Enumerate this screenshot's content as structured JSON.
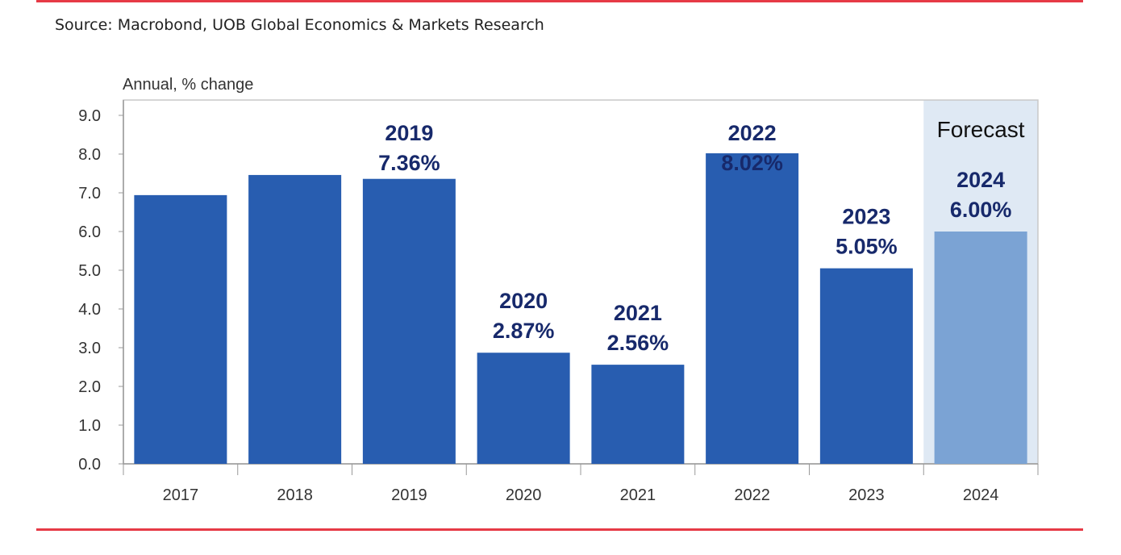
{
  "source": "Source: Macrobond, UOB Global Economics & Markets Research",
  "colors": {
    "bar": "#285db0",
    "forecast_bar": "#7ba3d4",
    "forecast_band": "#dfe9f4",
    "label": "#17296b",
    "rule": "#e63a46"
  },
  "chart_data": {
    "type": "bar",
    "ylabel": "Annual, % change",
    "ylim": [
      0,
      9
    ],
    "yticks": [
      "0.0",
      "1.0",
      "2.0",
      "3.0",
      "4.0",
      "5.0",
      "6.0",
      "7.0",
      "8.0",
      "9.0"
    ],
    "categories": [
      "2017",
      "2018",
      "2019",
      "2020",
      "2021",
      "2022",
      "2023",
      "2024"
    ],
    "values": [
      6.94,
      7.46,
      7.36,
      2.87,
      2.56,
      8.02,
      5.05,
      6.0
    ],
    "forecast": [
      false,
      false,
      false,
      false,
      false,
      false,
      false,
      true
    ],
    "forecast_label": "Forecast",
    "annotations": [
      {
        "category": "2019",
        "year": "2019",
        "value": "7.36%"
      },
      {
        "category": "2020",
        "year": "2020",
        "value": "2.87%"
      },
      {
        "category": "2021",
        "year": "2021",
        "value": "2.56%"
      },
      {
        "category": "2022",
        "year": "2022",
        "value": "8.02%"
      },
      {
        "category": "2023",
        "year": "2023",
        "value": "5.05%"
      },
      {
        "category": "2024",
        "year": "2024",
        "value": "6.00%"
      }
    ],
    "grid": false
  }
}
